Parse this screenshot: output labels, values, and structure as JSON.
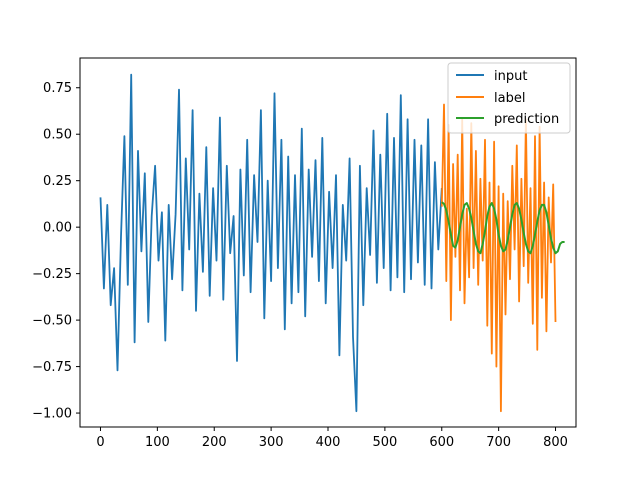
{
  "chart_data": {
    "type": "line",
    "title": "",
    "xlabel": "",
    "ylabel": "",
    "xlim": [
      -36,
      836
    ],
    "ylim": [
      -1.075,
      0.91
    ],
    "grid": false,
    "legend_placement": "top-right",
    "x_ticks": [
      0,
      100,
      200,
      300,
      400,
      500,
      600,
      700,
      800
    ],
    "x_tick_labels": [
      "0",
      "100",
      "200",
      "300",
      "400",
      "500",
      "600",
      "700",
      "800"
    ],
    "y_ticks": [
      -1.0,
      -0.75,
      -0.5,
      -0.25,
      0.0,
      0.25,
      0.5,
      0.75
    ],
    "y_tick_labels": [
      "−1.00",
      "−0.75",
      "−0.50",
      "−0.25",
      "0.00",
      "0.25",
      "0.50",
      "0.75"
    ],
    "series": [
      {
        "name": "input",
        "color": "#1f77b4",
        "x_start": 0,
        "x_step": 6,
        "values": [
          0.16,
          -0.33,
          0.12,
          -0.42,
          -0.22,
          -0.77,
          -0.05,
          0.49,
          -0.31,
          0.82,
          -0.62,
          0.41,
          -0.13,
          0.29,
          -0.51,
          0.06,
          0.33,
          -0.18,
          0.08,
          -0.61,
          0.12,
          -0.28,
          0.07,
          0.74,
          -0.34,
          0.37,
          -0.12,
          0.63,
          -0.45,
          0.18,
          -0.24,
          0.43,
          -0.37,
          0.21,
          -0.18,
          0.59,
          -0.39,
          0.33,
          -0.14,
          0.06,
          -0.72,
          0.31,
          -0.26,
          0.47,
          -0.35,
          0.28,
          -0.08,
          0.63,
          -0.49,
          0.25,
          -0.29,
          0.72,
          -0.22,
          0.47,
          -0.55,
          0.38,
          -0.41,
          0.28,
          -0.35,
          0.53,
          -0.48,
          0.31,
          -0.16,
          0.36,
          -0.29,
          0.48,
          -0.41,
          0.19,
          -0.22,
          0.28,
          -0.69,
          0.12,
          -0.18,
          0.37,
          -0.59,
          -0.99,
          0.33,
          -0.42,
          0.21,
          -0.15,
          0.52,
          -0.3,
          0.39,
          -0.22,
          0.61,
          -0.34,
          0.48,
          -0.27,
          0.71,
          -0.35,
          0.58,
          -0.28,
          0.47,
          -0.19,
          0.44,
          -0.31,
          0.58,
          -0.33,
          0.35,
          -0.12,
          0.21
        ]
      },
      {
        "name": "label",
        "color": "#ff7f0e",
        "x_start": 600,
        "x_step": 4,
        "values": [
          0.11,
          0.66,
          -0.29,
          0.55,
          -0.5,
          0.34,
          -0.16,
          0.39,
          -0.34,
          0.58,
          -0.41,
          0.1,
          -0.27,
          0.56,
          -0.22,
          0.41,
          -0.31,
          0.26,
          -0.18,
          0.47,
          -0.53,
          0.24,
          -0.68,
          0.46,
          -0.75,
          0.22,
          -0.99,
          0.18,
          -0.47,
          0.14,
          -0.28,
          0.33,
          -0.12,
          0.44,
          -0.4,
          0.26,
          -0.21,
          0.58,
          -0.3,
          0.21,
          -0.52,
          0.49,
          -0.66,
          0.54,
          -0.38,
          0.24,
          -0.56,
          0.16,
          -0.19,
          0.23,
          -0.51
        ]
      },
      {
        "name": "prediction",
        "color": "#2ca02c",
        "x_start": 600,
        "x_step": 4,
        "values": [
          0.135,
          0.125,
          0.09,
          0.03,
          -0.04,
          -0.1,
          -0.11,
          -0.07,
          0.0,
          0.07,
          0.12,
          0.13,
          0.1,
          0.05,
          -0.02,
          -0.09,
          -0.13,
          -0.14,
          -0.09,
          -0.02,
          0.06,
          0.11,
          0.13,
          0.1,
          0.04,
          -0.04,
          -0.1,
          -0.13,
          -0.12,
          -0.07,
          0.0,
          0.07,
          0.12,
          0.13,
          0.1,
          0.04,
          -0.03,
          -0.09,
          -0.13,
          -0.14,
          -0.1,
          -0.04,
          0.03,
          0.09,
          0.12,
          0.12,
          0.08,
          0.01,
          -0.06,
          -0.11,
          -0.14,
          -0.13,
          -0.09,
          -0.08,
          -0.08
        ]
      }
    ]
  }
}
